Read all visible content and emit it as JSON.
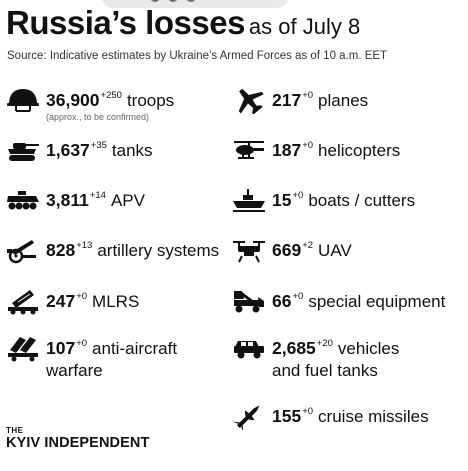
{
  "header": {
    "title": "Russia’s losses",
    "date": "as of July 8",
    "source": "Source: Indicative estimates by Ukraine’s Armed Forces as of 10 a.m. EET"
  },
  "items": [
    {
      "icon": "helmet-icon",
      "number": "36,900",
      "delta": "+250",
      "label": "troops",
      "note": "(approx., to be confirmed)"
    },
    {
      "icon": "plane-icon",
      "number": "217",
      "delta": "+0",
      "label": "planes"
    },
    {
      "icon": "tank-icon",
      "number": "1,637",
      "delta": "+35",
      "label": "tanks"
    },
    {
      "icon": "helicopter-icon",
      "number": "187",
      "delta": "+0",
      "label": "helicopters"
    },
    {
      "icon": "apv-icon",
      "number": "3,811",
      "delta": "+14",
      "label": "APV"
    },
    {
      "icon": "boat-icon",
      "number": "15",
      "delta": "+0",
      "label": "boats / cutters"
    },
    {
      "icon": "artillery-icon",
      "number": "828",
      "delta": "+13",
      "label": "artillery systems"
    },
    {
      "icon": "drone-icon",
      "number": "669",
      "delta": "+2",
      "label": "UAV"
    },
    {
      "icon": "mlrs-icon",
      "number": "247",
      "delta": "+0",
      "label": "MLRS"
    },
    {
      "icon": "special-equipment-icon",
      "number": "66",
      "delta": "+0",
      "label": "special equipment"
    },
    {
      "icon": "anti-aircraft-icon",
      "number": "107",
      "delta": "+0",
      "label": "anti-aircraft",
      "label2": "warfare"
    },
    {
      "icon": "vehicle-icon",
      "number": "2,685",
      "delta": "+20",
      "label": "vehicles",
      "label2": "and fuel tanks"
    },
    {
      "icon": "cruise-missile-icon",
      "number": "155",
      "delta": "+0",
      "label": "cruise missiles"
    }
  ],
  "brand": {
    "the": "THE",
    "name": "KYIV INDEPENDENT"
  },
  "colors": {
    "text": "#111111",
    "icon": "#111111",
    "background": "#ffffff"
  }
}
